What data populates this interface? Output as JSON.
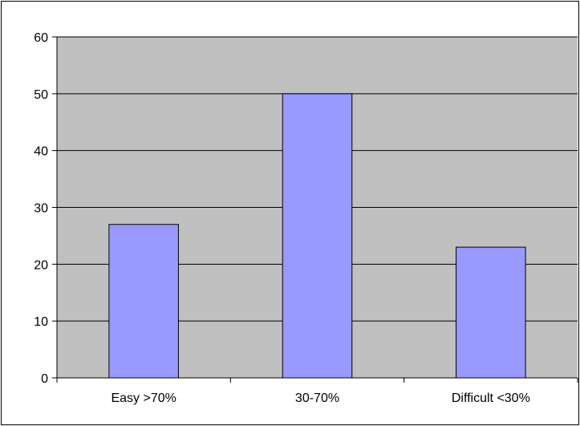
{
  "chart_data": {
    "type": "bar",
    "categories": [
      "Easy >70%",
      "30-70%",
      "Difficult <30%"
    ],
    "values": [
      27,
      50,
      23
    ],
    "title": "",
    "xlabel": "",
    "ylabel": "",
    "ylim": [
      0,
      60
    ],
    "yticks": [
      0,
      10,
      20,
      30,
      40,
      50,
      60
    ],
    "grid": true,
    "legend": "none",
    "colors": {
      "bar_fill": "#9999ff",
      "bar_stroke": "#000000",
      "plot_background": "#c0c0c0",
      "gridline": "#000000"
    }
  }
}
